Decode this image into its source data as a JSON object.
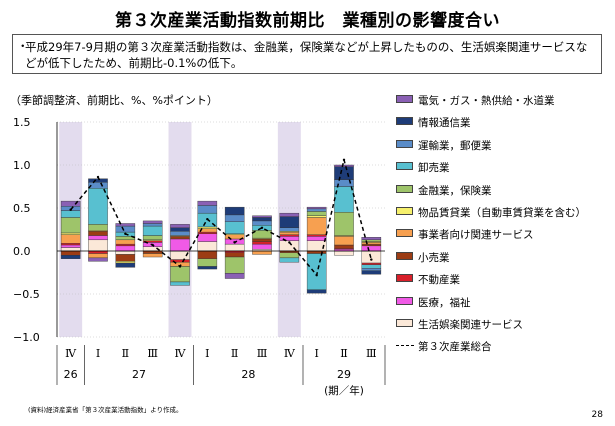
{
  "title": "第３次産業活動指数前期比　業種別の影響度合い",
  "summary": "平成29年7-9月期の第３次産業活動指数は、金融業，保険業などが上昇したものの、生活娯楽関連サービスなどが低下したため、前期比-0.1%の低下。",
  "bullet": "・",
  "unit_note": "（季節調整済、前期比、%、%ポイント）",
  "source": "(資料)経済産業省「第３次産業活動指数」より作成。",
  "page_number": "28",
  "colors": {
    "shade": "#e3dcee",
    "grid": "#bbbbbb"
  },
  "chart_data": {
    "type": "bar",
    "stacked": true,
    "ylim": [
      -1.0,
      1.5
    ],
    "yticks": [
      "1.5",
      "1.0",
      "0.5",
      "0.0",
      "−0.5",
      "−1.0"
    ],
    "ytick_values": [
      1.5,
      1.0,
      0.5,
      0.0,
      -0.5,
      -1.0
    ],
    "categories": [
      "Ⅳ",
      "Ⅰ",
      "Ⅱ",
      "Ⅲ",
      "Ⅳ",
      "Ⅰ",
      "Ⅱ",
      "Ⅲ",
      "Ⅳ",
      "Ⅰ",
      "Ⅱ",
      "Ⅲ"
    ],
    "years": [
      {
        "label": "26",
        "start": 0,
        "end": 0
      },
      {
        "label": "27",
        "start": 1,
        "end": 4
      },
      {
        "label": "28",
        "start": 5,
        "end": 8
      },
      {
        "label": "29",
        "start": 9,
        "end": 11
      }
    ],
    "period_label": "(期／年)",
    "shaded_categories": [
      0,
      4,
      8
    ],
    "series": [
      {
        "name": "生活娯楽関連サービス",
        "color": "#fbe8d8",
        "values": [
          0.04,
          0.13,
          -0.04,
          0.05,
          -0.1,
          0.11,
          0.08,
          0.02,
          0.12,
          0.12,
          -0.05,
          -0.14
        ]
      },
      {
        "name": "医療，福祉",
        "color": "#f05ae6",
        "values": [
          0.03,
          0.05,
          0.06,
          0.05,
          0.14,
          0.09,
          0.06,
          0.06,
          0.05,
          0.05,
          0.02,
          0.06
        ]
      },
      {
        "name": "不動産業",
        "color": "#d8202a",
        "values": [
          0.02,
          -0.03,
          0.02,
          0.02,
          -0.03,
          0.02,
          -0.02,
          0.03,
          0.02,
          0.02,
          0.01,
          -0.02
        ]
      },
      {
        "name": "小売業",
        "color": "#9c3c14",
        "values": [
          -0.05,
          0.05,
          -0.08,
          -0.03,
          0.03,
          -0.09,
          -0.05,
          0.03,
          -0.02,
          -0.03,
          0.04,
          0.02
        ]
      },
      {
        "name": "事業者向け関連サービス",
        "color": "#f7a050",
        "values": [
          0.1,
          -0.05,
          0.05,
          -0.04,
          -0.05,
          0.04,
          0.05,
          -0.04,
          0.03,
          0.2,
          0.1,
          0.02
        ]
      },
      {
        "name": "物品賃貸業（自動車賃貸業を含む）",
        "color": "#f6f06c",
        "values": [
          0.02,
          0.01,
          -0.02,
          0.01,
          0.01,
          0.02,
          0.01,
          0.01,
          0.01,
          0.02,
          0.01,
          0.01
        ]
      },
      {
        "name": "金融業，保険業",
        "color": "#9ec46a",
        "values": [
          0.18,
          0.07,
          0.04,
          0.05,
          -0.18,
          -0.09,
          -0.19,
          0.09,
          -0.06,
          0.05,
          0.27,
          0.02
        ]
      },
      {
        "name": "卸売業",
        "color": "#58c0d0",
        "values": [
          0.08,
          0.42,
          0.05,
          0.11,
          -0.04,
          0.16,
          0.14,
          0.06,
          -0.05,
          -0.42,
          0.3,
          -0.04
        ]
      },
      {
        "name": "運輸業，郵便業",
        "color": "#5a8cc8",
        "values": [
          0.05,
          0.07,
          0.07,
          0.03,
          0.05,
          0.09,
          0.08,
          0.05,
          0.04,
          0.03,
          0.08,
          -0.03
        ]
      },
      {
        "name": "情報通信業",
        "color": "#1e3c78",
        "values": [
          -0.04,
          0.04,
          -0.05,
          0.0,
          0.04,
          -0.03,
          0.09,
          0.04,
          0.13,
          -0.04,
          0.15,
          -0.04
        ]
      },
      {
        "name": "電気・ガス・熱供給・水道業",
        "color": "#8a60b4",
        "values": [
          0.06,
          -0.04,
          0.03,
          0.03,
          0.04,
          0.05,
          -0.06,
          0.02,
          0.04,
          0.02,
          0.02,
          0.03
        ]
      }
    ],
    "total": {
      "name": "第３次産業総合",
      "values": [
        0.48,
        0.86,
        0.2,
        0.07,
        -0.18,
        0.37,
        0.1,
        0.27,
        0.1,
        -0.28,
        1.06,
        -0.1
      ]
    }
  }
}
